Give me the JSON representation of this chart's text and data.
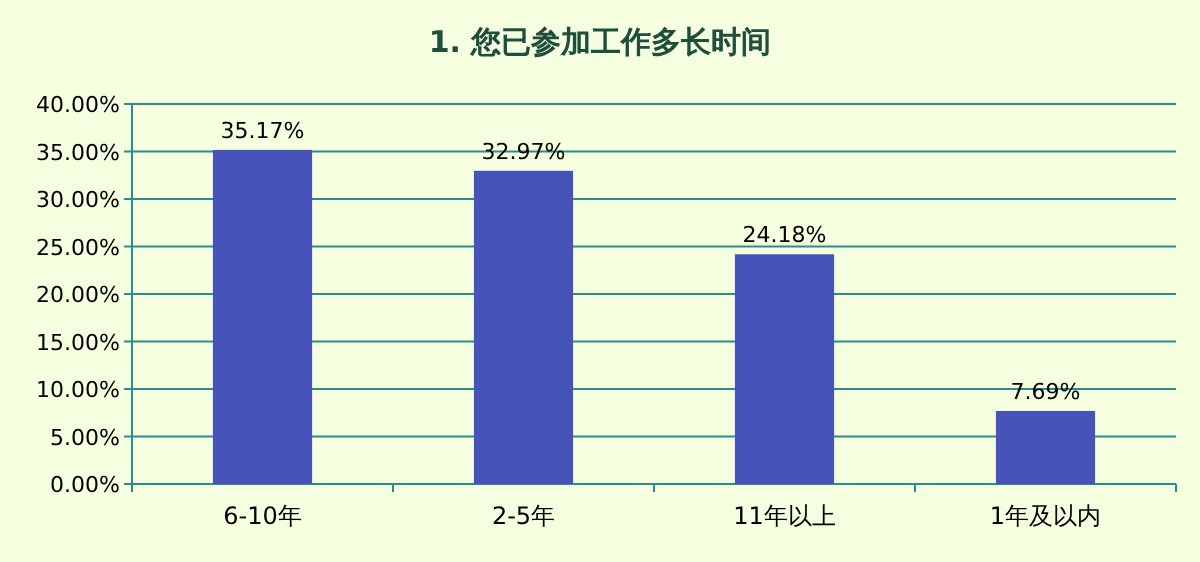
{
  "chart_data": {
    "type": "bar",
    "title": "1. 您已参加工作多长时间",
    "categories": [
      "6-10年",
      "2-5年",
      "11年以上",
      "1年及以内"
    ],
    "values": [
      35.17,
      32.97,
      24.18,
      7.69
    ],
    "value_labels": [
      "35.17%",
      "32.97%",
      "24.18%",
      "7.69%"
    ],
    "color": "#4653b8",
    "ylim": [
      0,
      40
    ],
    "yticks": [
      {
        "value": 0,
        "label": "0.00%"
      },
      {
        "value": 5,
        "label": "5.00%"
      },
      {
        "value": 10,
        "label": "10.00%"
      },
      {
        "value": 15,
        "label": "15.00%"
      },
      {
        "value": 20,
        "label": "20.00%"
      },
      {
        "value": 25,
        "label": "25.00%"
      },
      {
        "value": 30,
        "label": "30.00%"
      },
      {
        "value": 35,
        "label": "35.00%"
      },
      {
        "value": 40,
        "label": "40.00%"
      }
    ],
    "grid": "y"
  }
}
